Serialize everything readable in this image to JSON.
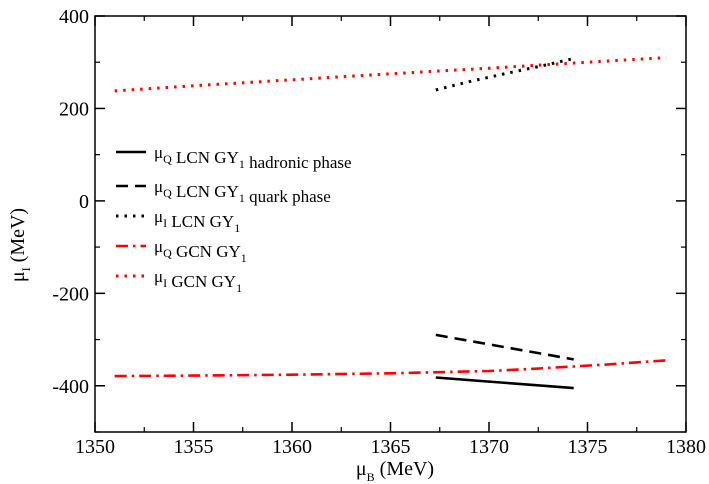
{
  "chart_data": {
    "type": "line",
    "title": "",
    "xlabel": {
      "base": "μ",
      "sub": "B",
      "rest": " (MeV)"
    },
    "ylabel": {
      "base": "μ",
      "sub": "I",
      "rest": " (MeV)"
    },
    "xlim": [
      1350,
      1380
    ],
    "ylim": [
      -500,
      400
    ],
    "xticks": [
      1350,
      1355,
      1360,
      1365,
      1370,
      1375,
      1380
    ],
    "yticks": [
      -400,
      -200,
      0,
      200,
      400
    ],
    "xtick_labels": [
      "1350",
      "1355",
      "1360",
      "1365",
      "1370",
      "1375",
      "1380"
    ],
    "ytick_labels": [
      "-400",
      "-200",
      "0",
      "200",
      "400"
    ],
    "grid": false,
    "legend_position": "left",
    "series": [
      {
        "legend": {
          "mu": "μ",
          "mu_sub": "Q",
          "text": " LCN GY",
          "gy_sub": "1",
          "after": " hadronic phase"
        },
        "color": "#000000",
        "style": "solid",
        "x": [
          1367.3,
          1374.3
        ],
        "y": [
          -382,
          -405
        ]
      },
      {
        "legend": {
          "mu": "μ",
          "mu_sub": "Q",
          "text": " LCN GY",
          "gy_sub": "1",
          "after": " quark phase"
        },
        "color": "#000000",
        "style": "dashed",
        "x": [
          1367.3,
          1374.3
        ],
        "y": [
          -290,
          -343
        ]
      },
      {
        "legend": {
          "mu": "μ",
          "mu_sub": "I",
          "text": " LCN GY",
          "gy_sub": "1",
          "after": ""
        },
        "color": "#000000",
        "style": "dotted",
        "x": [
          1367.3,
          1369.0,
          1371.0,
          1373.0,
          1374.3
        ],
        "y": [
          240,
          258,
          277,
          295,
          308
        ]
      },
      {
        "legend": {
          "mu": "μ",
          "mu_sub": "Q",
          "text": " GCN GY",
          "gy_sub": "1",
          "after": ""
        },
        "color": "#ff0000",
        "style": "dashdot",
        "x": [
          1351.0,
          1355.0,
          1360.0,
          1365.0,
          1370.0,
          1372.0,
          1374.0,
          1376.0,
          1378.0,
          1379.0
        ],
        "y": [
          -379,
          -378,
          -376,
          -373,
          -368,
          -364,
          -359,
          -354,
          -348,
          -345
        ]
      },
      {
        "legend": {
          "mu": "μ",
          "mu_sub": "I",
          "text": " GCN GY",
          "gy_sub": "1",
          "after": ""
        },
        "color": "#ff0000",
        "style": "dotted",
        "x": [
          1351.0,
          1355.0,
          1360.0,
          1365.0,
          1370.0,
          1375.0,
          1379.0
        ],
        "y": [
          238,
          249,
          262,
          275,
          287,
          300,
          310
        ]
      }
    ]
  }
}
